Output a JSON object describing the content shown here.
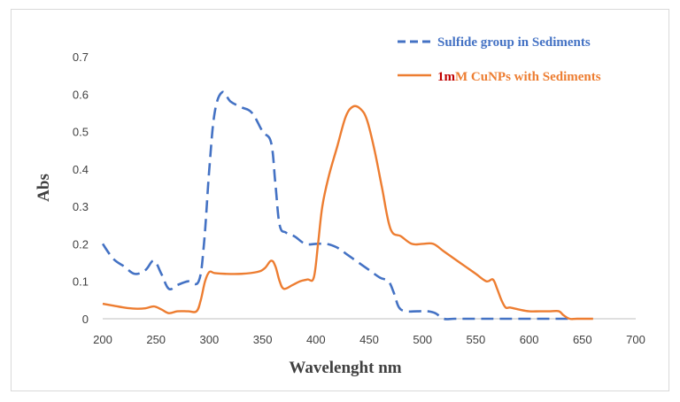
{
  "chart_data": {
    "type": "line",
    "xlabel": "Wavelenght nm",
    "ylabel": "Abs",
    "xlim": [
      200,
      700
    ],
    "ylim": [
      0,
      0.7
    ],
    "x_ticks": [
      "200",
      "250",
      "300",
      "350",
      "400",
      "450",
      "500",
      "550",
      "600",
      "650",
      "700"
    ],
    "y_ticks": [
      "0",
      "0.1",
      "0.2",
      "0.3",
      "0.4",
      "0.5",
      "0.6",
      "0.7"
    ],
    "grid": false,
    "legend_position": "top-right",
    "series": [
      {
        "name_prefix": "",
        "name_rest": "Sulfide group in Sediments",
        "color": "#4472C4",
        "style": "dashed",
        "x": [
          200,
          210,
          220,
          230,
          240,
          248,
          255,
          262,
          270,
          280,
          290,
          295,
          300,
          305,
          312,
          320,
          330,
          340,
          350,
          358,
          362,
          366,
          372,
          380,
          390,
          400,
          410,
          420,
          430,
          440,
          450,
          460,
          468,
          473,
          478,
          485,
          495,
          505,
          512,
          520,
          530,
          550,
          580,
          620,
          640
        ],
        "y": [
          0.2,
          0.16,
          0.14,
          0.12,
          0.13,
          0.155,
          0.12,
          0.08,
          0.09,
          0.1,
          0.1,
          0.2,
          0.4,
          0.55,
          0.605,
          0.58,
          0.565,
          0.55,
          0.5,
          0.47,
          0.36,
          0.25,
          0.23,
          0.22,
          0.2,
          0.2,
          0.2,
          0.19,
          0.17,
          0.15,
          0.13,
          0.11,
          0.1,
          0.07,
          0.03,
          0.02,
          0.02,
          0.02,
          0.015,
          0,
          0,
          0,
          0,
          0,
          0
        ]
      },
      {
        "name_prefix": "1m",
        "name_rest": "M CuNPs with Sediments",
        "color": "#ED7D31",
        "style": "solid",
        "x": [
          200,
          210,
          220,
          230,
          240,
          248,
          255,
          262,
          270,
          280,
          288,
          292,
          296,
          300,
          305,
          315,
          330,
          345,
          352,
          358,
          362,
          366,
          370,
          378,
          385,
          392,
          398,
          402,
          406,
          412,
          420,
          428,
          435,
          442,
          448,
          455,
          462,
          470,
          480,
          490,
          500,
          510,
          520,
          530,
          540,
          550,
          560,
          566,
          570,
          574,
          578,
          582,
          590,
          600,
          610,
          620,
          628,
          632,
          638,
          645,
          660
        ],
        "y": [
          0.04,
          0.035,
          0.03,
          0.027,
          0.028,
          0.033,
          0.025,
          0.015,
          0.02,
          0.02,
          0.02,
          0.05,
          0.1,
          0.125,
          0.122,
          0.12,
          0.12,
          0.125,
          0.135,
          0.155,
          0.14,
          0.1,
          0.08,
          0.09,
          0.1,
          0.105,
          0.11,
          0.2,
          0.3,
          0.38,
          0.46,
          0.54,
          0.567,
          0.56,
          0.53,
          0.45,
          0.35,
          0.24,
          0.22,
          0.2,
          0.2,
          0.2,
          0.18,
          0.16,
          0.14,
          0.12,
          0.1,
          0.105,
          0.08,
          0.05,
          0.03,
          0.03,
          0.025,
          0.02,
          0.02,
          0.02,
          0.02,
          0.01,
          0,
          0,
          0
        ]
      }
    ]
  }
}
